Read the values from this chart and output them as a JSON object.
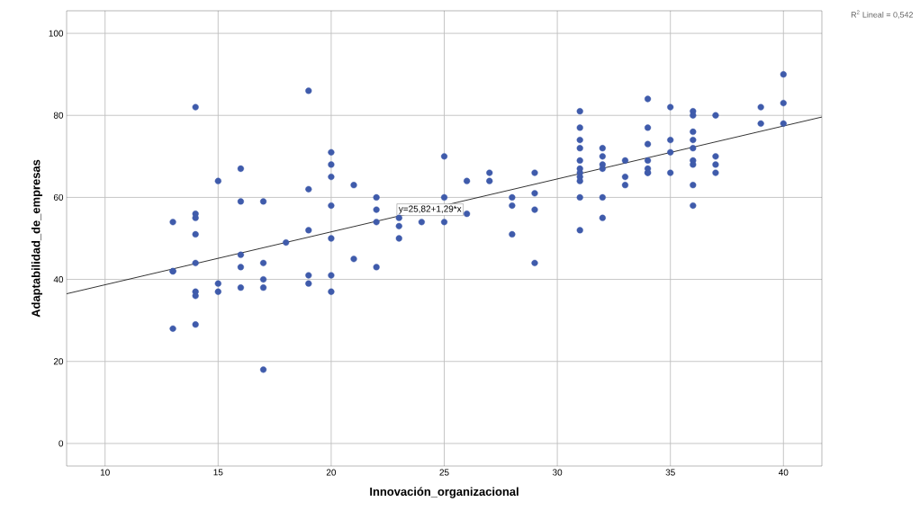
{
  "chart_data": {
    "type": "scatter",
    "xlabel": "Innovación_organizacional",
    "ylabel": "Adaptabilidad_de_empresas",
    "xlim": [
      8.3,
      41.7
    ],
    "ylim": [
      -5.5,
      105.5
    ],
    "xticks": [
      10,
      15,
      20,
      25,
      30,
      35,
      40
    ],
    "yticks": [
      0,
      20,
      40,
      60,
      80,
      100
    ],
    "grid": true,
    "series": [
      {
        "color": "#3f5bab",
        "marker": "circle",
        "x": [
          13,
          13,
          13,
          13,
          14,
          14,
          14,
          14,
          14,
          14,
          14,
          14,
          15,
          15,
          15,
          16,
          16,
          16,
          16,
          16,
          17,
          17,
          17,
          17,
          17,
          18,
          19,
          19,
          19,
          19,
          19,
          20,
          20,
          20,
          20,
          20,
          20,
          20,
          21,
          21,
          22,
          22,
          22,
          22,
          23,
          23,
          23,
          24,
          25,
          25,
          25,
          26,
          26,
          27,
          27,
          28,
          28,
          28,
          29,
          29,
          29,
          29,
          31,
          31,
          31,
          31,
          31,
          31,
          31,
          31,
          31,
          31,
          31,
          32,
          32,
          32,
          32,
          32,
          32,
          33,
          33,
          33,
          34,
          34,
          34,
          34,
          34,
          34,
          34,
          35,
          35,
          35,
          35,
          36,
          36,
          36,
          36,
          36,
          36,
          36,
          36,
          36,
          37,
          37,
          37,
          37,
          39,
          39,
          40,
          40,
          40
        ],
        "values": [
          54,
          42,
          42,
          28,
          82,
          56,
          55,
          51,
          44,
          37,
          36,
          29,
          64,
          39,
          37,
          67,
          59,
          46,
          43,
          38,
          59,
          44,
          40,
          38,
          18,
          49,
          86,
          62,
          52,
          41,
          39,
          71,
          68,
          65,
          58,
          50,
          41,
          37,
          63,
          45,
          60,
          57,
          54,
          43,
          55,
          53,
          50,
          54,
          70,
          60,
          54,
          64,
          56,
          66,
          64,
          60,
          58,
          51,
          66,
          61,
          57,
          44,
          81,
          77,
          74,
          72,
          69,
          67,
          66,
          65,
          64,
          60,
          52,
          72,
          70,
          68,
          67,
          60,
          55,
          69,
          65,
          63,
          84,
          77,
          73,
          69,
          67,
          66,
          66,
          82,
          74,
          71,
          66,
          81,
          80,
          76,
          74,
          72,
          69,
          68,
          63,
          58,
          80,
          70,
          68,
          66,
          82,
          78,
          90,
          83,
          78
        ]
      },
      {
        "type": "line",
        "color": "#000000",
        "x": [
          8.3,
          41.7
        ],
        "values": [
          36.5,
          79.6
        ],
        "marker": "none"
      }
    ],
    "annotations": [
      "y=25,82+1,29*x",
      "R$^{2}$ Lineal = 0,542"
    ]
  }
}
